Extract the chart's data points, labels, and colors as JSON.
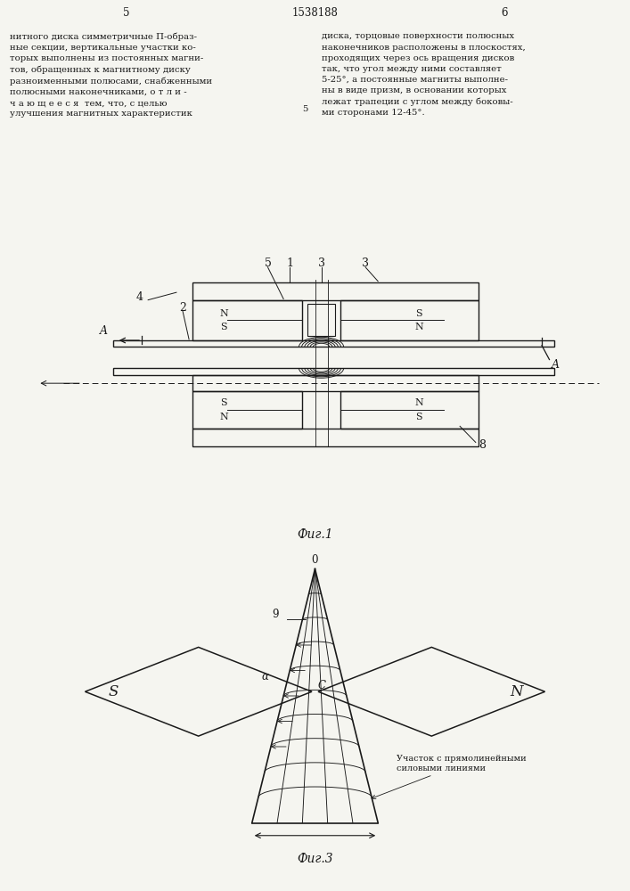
{
  "page_num_left": "5",
  "page_num_center": "1538188",
  "page_num_right": "6",
  "text_left": "нитного диска симметричные П-образ-\nные секции, вертикальные участки ко-\nторых выполнены из постоянных магни-\nтов, обращенных к магнитному диску\nразноименными полюсами, снабженными\nполюсными наконечниками, о т л и -\nч а ю щ е е с я  тем, что, с целью\nулучшения магнитных характеристик",
  "text_right": "диска, торцовые поверхности полюсных\nнаконечников расположены в плоскостях,\nпроходящих через ось вращения дисков\nтак, что угол между ними составляет\n5-25°, а постоянные магниты выполне-\nны в виде призм, в основании которых\nлежат трапеции с углом между боковы-\nми сторонами 12-45°.",
  "fig1_caption": "Фиг.1",
  "fig3_caption": "Фиг.3",
  "line_color": "#1a1a1a",
  "bg_color": "#f5f5f0",
  "text_color": "#1a1a1a"
}
